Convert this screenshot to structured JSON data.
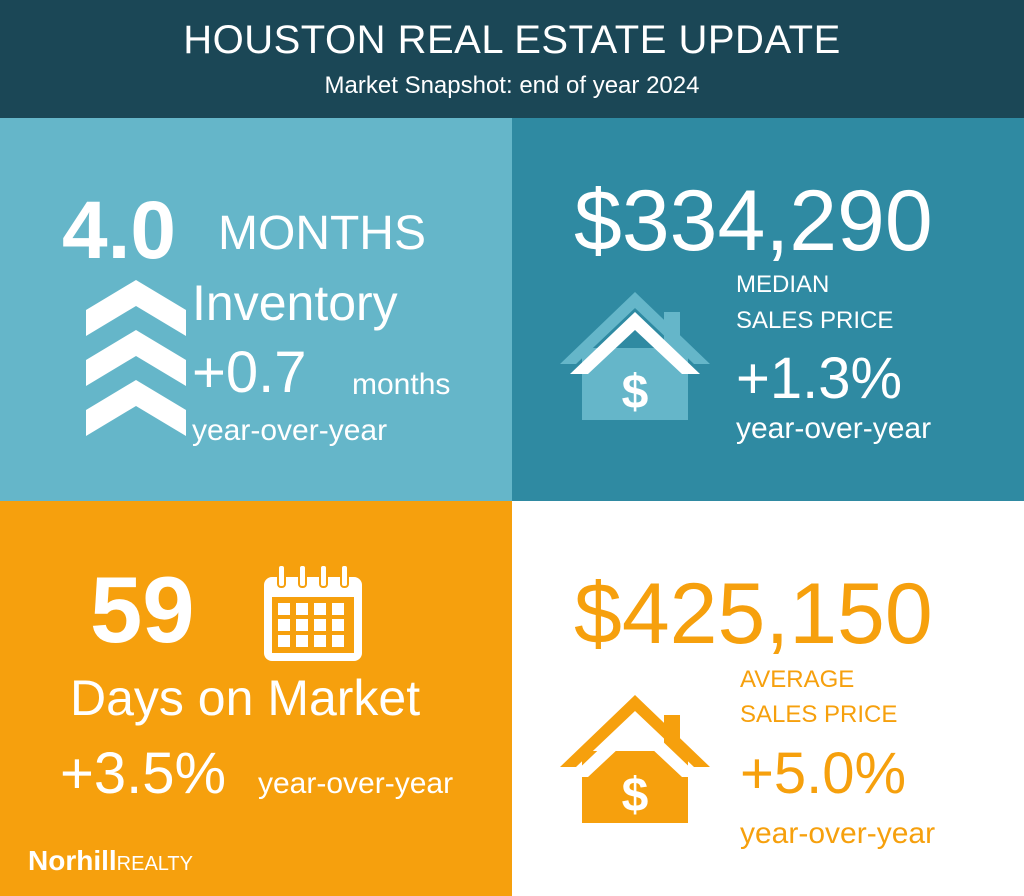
{
  "header": {
    "title": "HOUSTON REAL ESTATE UPDATE",
    "subtitle": "Market Snapshot: end of year 2024"
  },
  "inventory": {
    "value": "4.0",
    "unit": "MONTHS",
    "label": "Inventory",
    "change": "+0.7",
    "change_unit": "months",
    "period": "year-over-year",
    "icon": "chevron-up-stack-icon"
  },
  "median_price": {
    "value": "$334,290",
    "label_line1": "MEDIAN",
    "label_line2": "SALES PRICE",
    "change": "+1.3%",
    "period": "year-over-year",
    "icon": "house-dollar-icon"
  },
  "days_on_market": {
    "value": "59",
    "label": "Days on Market",
    "change": "+3.5%",
    "period": "year-over-year",
    "icon": "calendar-icon"
  },
  "average_price": {
    "value": "$425,150",
    "label_line1": "AVERAGE",
    "label_line2": "SALES PRICE",
    "change": "+5.0%",
    "period": "year-over-year",
    "icon": "house-dollar-icon"
  },
  "brand": {
    "name_bold": "Norhill",
    "name_light": "REALTY"
  },
  "colors": {
    "header": "#1b4756",
    "light_teal": "#65b6c9",
    "dark_teal": "#2f8aa2",
    "orange": "#f6a00d",
    "white": "#ffffff"
  }
}
